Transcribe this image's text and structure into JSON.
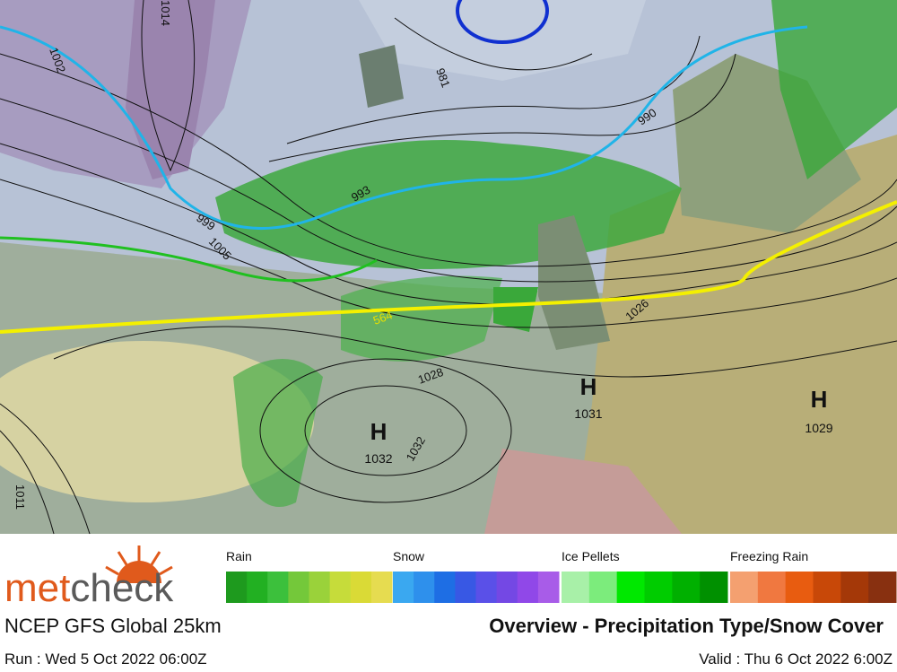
{
  "logo": [
    "met",
    "check"
  ],
  "model": "NCEP GFS Global 25km",
  "title": "Overview - Precipitation Type/Snow Cover",
  "run": "Run : Wed 5 Oct 2022 06:00Z",
  "valid": "Valid : Thu 6 Oct 2022 6:00Z",
  "legend": [
    {
      "label": "Rain",
      "colors": [
        "#1e9a1e",
        "#22b022",
        "#3cc03c",
        "#74c83a",
        "#9ad23a",
        "#c6dc3a",
        "#dada36",
        "#e6dc50"
      ]
    },
    {
      "label": "Snow",
      "colors": [
        "#3aa8f0",
        "#2e90ec",
        "#1e6ee4",
        "#3858e4",
        "#5a50e8",
        "#7448e4",
        "#9048e8",
        "#a85ce8"
      ]
    },
    {
      "label": "Ice Pellets",
      "colors": [
        "#a8f0a8",
        "#7cec7c",
        "#00e800",
        "#00cc00",
        "#00b000",
        "#009000"
      ]
    },
    {
      "label": "Freezing Rain",
      "colors": [
        "#f4a070",
        "#f07840",
        "#e85c10",
        "#c84808",
        "#a43808",
        "#883010"
      ]
    }
  ],
  "map": {
    "contour_labels": [
      "1002",
      "1014",
      "981",
      "990",
      "993",
      "999",
      "1005",
      "564",
      "1028",
      "1032",
      "1026",
      "1011"
    ],
    "highs": [
      {
        "symbol": "H",
        "pressure": "1032"
      },
      {
        "symbol": "H",
        "pressure": "1031"
      },
      {
        "symbol": "H",
        "pressure": "1029"
      }
    ]
  }
}
